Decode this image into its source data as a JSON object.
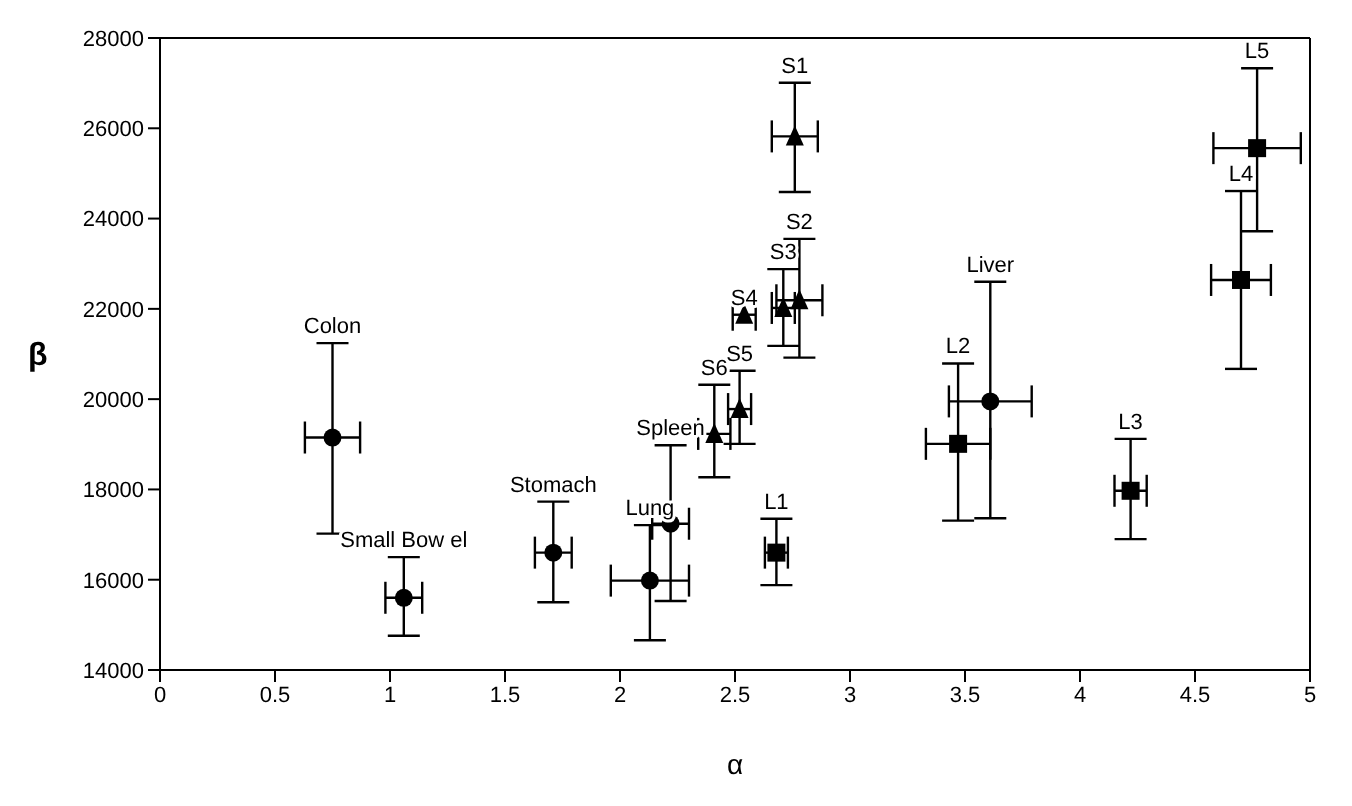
{
  "chart_data": {
    "type": "scatter",
    "xlabel": "α",
    "ylabel": "β",
    "xlim": [
      0,
      5
    ],
    "xticks": [
      0,
      0.5,
      1,
      1.5,
      2,
      2.5,
      3,
      3.5,
      4,
      4.5,
      5
    ],
    "ylim": [
      14000,
      28000
    ],
    "yticks": [
      14000,
      16000,
      18000,
      20000,
      22000,
      24000,
      26000,
      28000
    ],
    "legend": false,
    "series": [
      {
        "color": "#000000",
        "marker": "circle",
        "x": [
          0.75,
          1.06,
          1.71,
          2.13,
          2.22,
          3.61
        ],
        "values": [
          19150,
          15600,
          16600,
          15980,
          17240,
          19950
        ],
        "errors": [
          [
            17020,
            21240
          ],
          [
            14760,
            16500
          ],
          [
            15500,
            17730
          ],
          [
            14660,
            17210
          ],
          [
            15530,
            18980
          ],
          [
            17360,
            22600
          ]
        ],
        "xerrors": [
          0.12,
          0.08,
          0.08,
          0.17,
          0.08,
          0.18
        ]
      },
      {
        "color": "#000000",
        "marker": "triangle",
        "x": [
          2.76,
          2.78,
          2.71,
          2.54,
          2.52,
          2.41
        ],
        "values": [
          25820,
          22190,
          22020,
          21870,
          19780,
          19230
        ],
        "errors": [
          [
            24590,
            27010
          ],
          [
            20920,
            23550
          ],
          [
            21180,
            22880
          ],
          null,
          [
            19010,
            20630
          ],
          [
            18270,
            20320
          ]
        ],
        "xerrors": [
          0.1,
          0.1,
          0.05,
          0.05,
          0.05,
          0.07
        ]
      },
      {
        "color": "#000000",
        "marker": "square",
        "x": [
          2.68,
          3.47,
          4.22,
          4.7,
          4.77
        ],
        "values": [
          16600,
          19010,
          17970,
          22640,
          25560
        ],
        "errors": [
          [
            15880,
            17350
          ],
          [
            17310,
            20790
          ],
          [
            16900,
            19120
          ],
          [
            20670,
            24610
          ],
          [
            23720,
            27330
          ]
        ],
        "xerrors": [
          0.05,
          0.14,
          0.07,
          0.13,
          0.19
        ]
      }
    ],
    "annotations": [
      {
        "text": "Colon",
        "x": 0.75,
        "y": 21240
      },
      {
        "text": "Small Bow el",
        "x": 1.06,
        "y": 16500
      },
      {
        "text": "Stomach",
        "x": 1.71,
        "y": 17730
      },
      {
        "text": "Lung",
        "x": 2.13,
        "y": 17210
      },
      {
        "text": "Spleen",
        "x": 2.22,
        "y": 18980
      },
      {
        "text": "Liver",
        "x": 3.61,
        "y": 22600
      },
      {
        "text": "S1",
        "x": 2.76,
        "y": 27010
      },
      {
        "text": "S2",
        "x": 2.78,
        "y": 23550
      },
      {
        "text": "S3",
        "x": 2.71,
        "y": 22880
      },
      {
        "text": "S4",
        "x": 2.54,
        "y": 21870
      },
      {
        "text": "S5",
        "x": 2.52,
        "y": 20630
      },
      {
        "text": "S6",
        "x": 2.41,
        "y": 20320
      },
      {
        "text": "L1",
        "x": 2.68,
        "y": 17350
      },
      {
        "text": "L2",
        "x": 3.47,
        "y": 20790
      },
      {
        "text": "L3",
        "x": 4.22,
        "y": 19120
      },
      {
        "text": "L4",
        "x": 4.7,
        "y": 24610
      },
      {
        "text": "L5",
        "x": 4.77,
        "y": 27330
      }
    ]
  }
}
